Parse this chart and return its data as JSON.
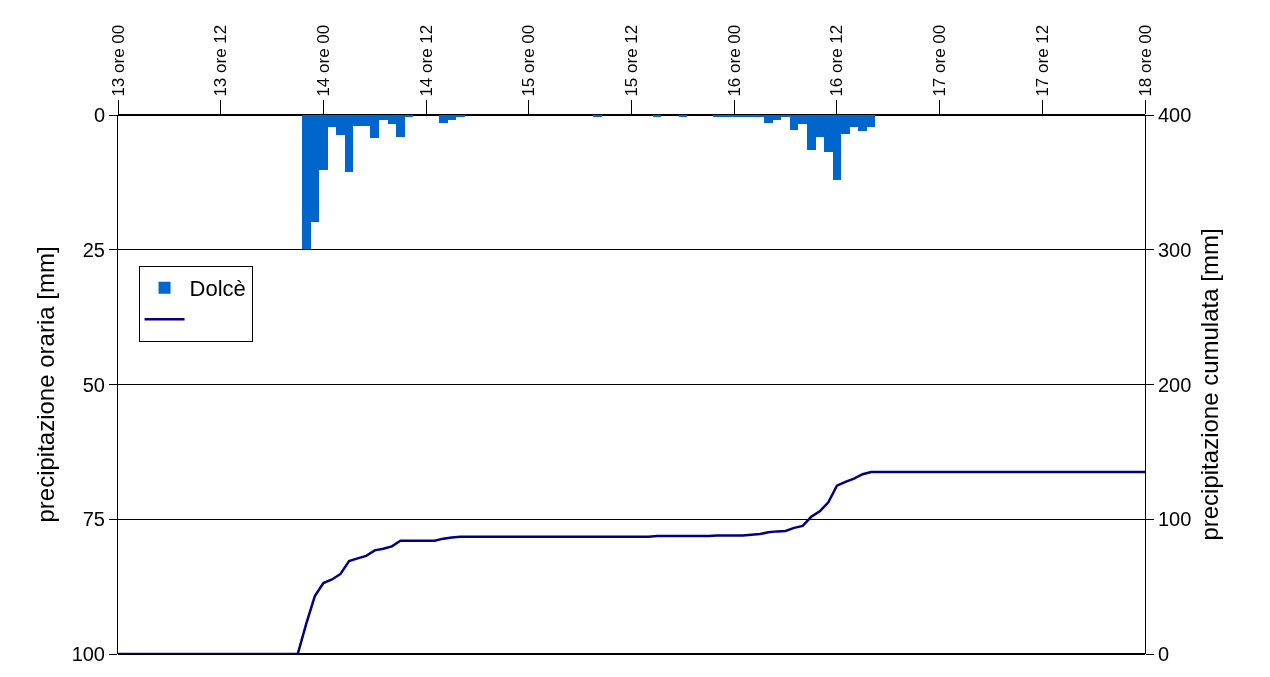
{
  "chart_data": {
    "type": "bar",
    "ylabel": "precipitazione oraria [mm]",
    "y2label": "precipitazione cumulata [mm]",
    "categories": [
      "13 ore 00",
      null,
      null,
      null,
      null,
      null,
      null,
      null,
      null,
      null,
      null,
      null,
      "13 ore 12",
      null,
      null,
      null,
      null,
      null,
      null,
      null,
      null,
      null,
      null,
      null,
      "14 ore 00",
      null,
      null,
      null,
      null,
      null,
      null,
      null,
      null,
      null,
      null,
      null,
      "14 ore 12",
      null,
      null,
      null,
      null,
      null,
      null,
      null,
      null,
      null,
      null,
      null,
      "15 ore 00",
      null,
      null,
      null,
      null,
      null,
      null,
      null,
      null,
      null,
      null,
      null,
      "15 ore 12",
      null,
      null,
      null,
      null,
      null,
      null,
      null,
      null,
      null,
      null,
      null,
      "16 ore 00",
      null,
      null,
      null,
      null,
      null,
      null,
      null,
      null,
      null,
      null,
      null,
      "16 ore 12",
      null,
      null,
      null,
      null,
      null,
      null,
      null,
      null,
      null,
      null,
      null,
      "17 ore 00",
      null,
      null,
      null,
      null,
      null,
      null,
      null,
      null,
      null,
      null,
      null,
      "17 ore 12",
      null,
      null,
      null,
      null,
      null,
      null,
      null,
      null,
      null,
      null,
      null,
      "18 ore 00"
    ],
    "ylim": [
      100,
      0
    ],
    "yticks": [
      0,
      25,
      50,
      75,
      100
    ],
    "y2lim": [
      0,
      400
    ],
    "y2ticks": [
      0,
      100,
      200,
      300,
      400
    ],
    "grid": "y",
    "legend": "top left",
    "series": [
      {
        "name": "Dolcè",
        "color": "#0066cc",
        "values": [
          null,
          null,
          null,
          null,
          null,
          null,
          null,
          null,
          null,
          null,
          null,
          null,
          null,
          null,
          null,
          null,
          null,
          null,
          null,
          null,
          null,
          null,
          24.8,
          19.9,
          10.2,
          2.3,
          3.8,
          10.5,
          2.0,
          2.0,
          4.3,
          1.0,
          1.6,
          4.1,
          0.4,
          null,
          null,
          null,
          1.5,
          1.0,
          0.4,
          null,
          null,
          null,
          null,
          null,
          null,
          null,
          null,
          null,
          null,
          null,
          null,
          null,
          null,
          null,
          0.3,
          null,
          null,
          null,
          null,
          null,
          null,
          0.4,
          null,
          null,
          0.2,
          null,
          null,
          null,
          0.2,
          0.2,
          0.2,
          0.2,
          0.2,
          0.2,
          1.4,
          1.0,
          0.3,
          2.7,
          1.7,
          6.5,
          4.0,
          6.9,
          12.0,
          3.6,
          2.2,
          3.0,
          2.3,
          null,
          null,
          null,
          null,
          null,
          null,
          null,
          null,
          null,
          null,
          null,
          null,
          null,
          null,
          null,
          null,
          null,
          null,
          null,
          null,
          null,
          null,
          null,
          null,
          null,
          null,
          null,
          null,
          null,
          null,
          null,
          null
        ]
      },
      {
        "type": "line",
        "axis": "y2",
        "color": "#000080",
        "values": [
          0,
          0,
          0,
          0,
          0,
          0,
          0,
          0,
          0,
          0,
          0,
          0,
          0,
          0,
          0,
          0,
          0,
          0,
          0,
          0,
          0,
          0,
          22.5,
          43,
          52.6,
          55.3,
          59.4,
          69,
          71,
          72.8,
          76.9,
          78.1,
          79.9,
          84,
          84,
          84,
          84,
          84,
          85.6,
          86.5,
          87,
          87,
          87,
          87,
          87,
          87,
          87,
          87,
          87,
          87,
          87,
          87,
          87,
          87,
          87,
          87,
          87,
          87,
          87,
          87,
          87,
          87,
          87,
          87.6,
          87.6,
          87.6,
          87.6,
          87.6,
          87.6,
          87.6,
          88,
          88,
          88,
          88,
          88.5,
          89,
          90.4,
          91,
          91.3,
          93.6,
          95.1,
          101.8,
          105.9,
          112.6,
          124.9,
          127.8,
          130.2,
          133.4,
          135.1,
          135,
          135,
          135,
          135,
          135,
          135,
          135,
          135,
          135,
          135,
          135,
          135,
          135,
          135,
          135,
          135,
          135,
          135,
          135,
          135,
          135,
          135,
          135,
          135,
          135,
          135,
          135,
          135,
          135,
          135,
          135,
          135
        ]
      }
    ]
  }
}
